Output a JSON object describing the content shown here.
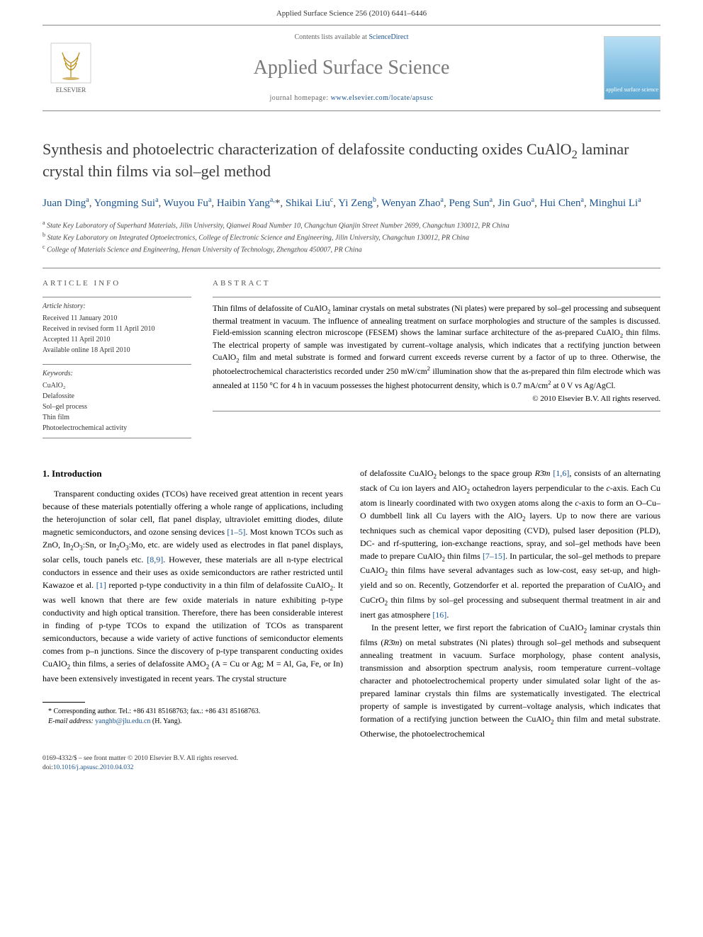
{
  "header": {
    "citation": "Applied Surface Science 256 (2010) 6441–6446"
  },
  "banner": {
    "contents_prefix": "Contents lists available at ",
    "contents_link": "ScienceDirect",
    "journal_title": "Applied Surface Science",
    "homepage_prefix": "journal homepage: ",
    "homepage_url": "www.elsevier.com/locate/apsusc",
    "publisher": "ELSEVIER",
    "cover_text": "applied surface science"
  },
  "article": {
    "title_html": "Synthesis and photoelectric characterization of delafossite conducting oxides CuAlO<sub>2</sub> laminar crystal thin films via sol–gel method",
    "authors_html": "<a>Juan Ding</a><span class=\"sup\">a</span>, <a>Yongming Sui</a><span class=\"sup\">a</span>, <a>Wuyou Fu</a><span class=\"sup\">a</span>, <a>Haibin Yang</a><span class=\"sup\">a,</span>*, <a>Shikai Liu</a><span class=\"sup\">c</span>, <a>Yi Zeng</a><span class=\"sup\">b</span>, <a>Wenyan Zhao</a><span class=\"sup\">a</span>, <a>Peng Sun</a><span class=\"sup\">a</span>, <a>Jin Guo</a><span class=\"sup\">a</span>, <a>Hui Chen</a><span class=\"sup\">a</span>, <a>Minghui Li</a><span class=\"sup\">a</span>",
    "affiliations": [
      {
        "sup": "a",
        "text": "State Key Laboratory of Superhard Materials, Jilin University, Qianwei Road Number 10, Changchun Qianjin Street Number 2699, Changchun 130012, PR China"
      },
      {
        "sup": "b",
        "text": "State Key Laboratory on Integrated Optoelectronics, College of Electronic Science and Engineering, Jilin University, Changchun 130012, PR China"
      },
      {
        "sup": "c",
        "text": "College of Materials Science and Engineering, Henan University of Technology, Zhengzhou 450007, PR China"
      }
    ]
  },
  "info": {
    "heading": "article info",
    "history_label": "Article history:",
    "history": [
      "Received 11 January 2010",
      "Received in revised form 11 April 2010",
      "Accepted 11 April 2010",
      "Available online 18 April 2010"
    ],
    "keywords_label": "Keywords:",
    "keywords": [
      "CuAlO₂",
      "Delafossite",
      "Sol–gel process",
      "Thin film",
      "Photoelectrochemical activity"
    ]
  },
  "abstract": {
    "heading": "abstract",
    "text_html": "Thin films of delafossite of CuAlO<sub>2</sub> laminar crystals on metal substrates (Ni plates) were prepared by sol–gel processing and subsequent thermal treatment in vacuum. The influence of annealing treatment on surface morphologies and structure of the samples is discussed. Field-emission scanning electron microscope (FESEM) shows the laminar surface architecture of the as-prepared CuAlO<sub>2</sub> thin films. The electrical property of sample was investigated by current–voltage analysis, which indicates that a rectifying junction between CuAlO<sub>2</sub> film and metal substrate is formed and forward current exceeds reverse current by a factor of up to three. Otherwise, the photoelectrochemical characteristics recorded under 250 mW/cm<sup>2</sup> illumination show that the as-prepared thin film electrode which was annealed at 1150 °C for 4 h in vacuum possesses the highest photocurrent density, which is 0.7 mA/cm<sup>2</sup> at 0 V vs Ag/AgCl.",
    "copyright": "© 2010 Elsevier B.V. All rights reserved."
  },
  "body": {
    "section_heading": "1. Introduction",
    "para1_html": "Transparent conducting oxides (TCOs) have received great attention in recent years because of these materials potentially offering a whole range of applications, including the heterojunction of solar cell, flat panel display, ultraviolet emitting diodes, dilute magnetic semiconductors, and ozone sensing devices <a>[1–5]</a>. Most known TCOs such as ZnO, In<sub>2</sub>O<sub>3</sub>:Sn, or In<sub>2</sub>O<sub>3</sub>:Mo, etc. are widely used as electrodes in flat panel displays, solar cells, touch panels etc. <a>[8,9]</a>. However, these materials are all n-type electrical conductors in essence and their uses as oxide semiconductors are rather restricted until Kawazoe et al. <a>[1]</a> reported p-type conductivity in a thin film of delafossite CuAlO<sub>2</sub>. It was well known that there are few oxide materials in nature exhibiting p-type conductivity and high optical transition. Therefore, there has been considerable interest in finding of p-type TCOs to expand the utilization of TCOs as transparent semiconductors, because a wide variety of active functions of semiconductor elements comes from p–n junctions. Since the discovery of p-type transparent conducting oxides CuAlO<sub>2</sub> thin films, a series of delafossite AMO<sub>2</sub> (A = Cu or Ag; M = Al, Ga, Fe, or In) have been extensively investigated in recent years. The crystal structure",
    "para1b_html": "of delafossite CuAlO<sub>2</sub> belongs to the space group <i>R</i>3̄<i>m</i> <a>[1,6]</a>, consists of an alternating stack of Cu ion layers and AlO<sub>2</sub> octahedron layers perpendicular to the <i>c</i>-axis. Each Cu atom is linearly coordinated with two oxygen atoms along the <i>c</i>-axis to form an O–Cu–O dumbbell link all Cu layers with the AlO<sub>2</sub> layers. Up to now there are various techniques such as chemical vapor depositing (CVD), pulsed laser deposition (PLD), DC- and rf-sputtering, ion-exchange reactions, spray, and sol–gel methods have been made to prepare CuAlO<sub>2</sub> thin films <a>[7–15]</a>. In particular, the sol–gel methods to prepare CuAlO<sub>2</sub> thin films have several advantages such as low-cost, easy set-up, and high-yield and so on. Recently, Gotzendorfer et al. reported the preparation of CuAlO<sub>2</sub> and CuCrO<sub>2</sub> thin films by sol–gel processing and subsequent thermal treatment in air and inert gas atmosphere <a>[16]</a>.",
    "para2_html": "In the present letter, we first report the fabrication of CuAlO<sub>2</sub> laminar crystals thin films (<i>R</i>3̄<i>m</i>) on metal substrates (Ni plates) through sol–gel methods and subsequent annealing treatment in vacuum. Surface morphology, phase content analysis, transmission and absorption spectrum analysis, room temperature current–voltage character and photoelectrochemical property under simulated solar light of the as-prepared laminar crystals thin films are systematically investigated. The electrical property of sample is investigated by current–voltage analysis, which indicates that formation of a rectifying junction between the CuAlO<sub>2</sub> thin film and metal substrate. Otherwise, the photoelectrochemical"
  },
  "footnote": {
    "corr_html": "* Corresponding author. Tel.: +86 431 85168763; fax.: +86 431 85168763.",
    "email_label": "E-mail address:",
    "email": "yanghb@jlu.edu.cn",
    "email_suffix": "(H. Yang)."
  },
  "footer": {
    "issn_line": "0169-4332/$ – see front matter © 2010 Elsevier B.V. All rights reserved.",
    "doi_prefix": "doi:",
    "doi": "10.1016/j.apsusc.2010.04.032"
  },
  "style": {
    "link_color": "#1a5490",
    "text_color": "#000000",
    "muted_color": "#555555",
    "gray_title": "#7a7a7a",
    "body_fontsize": 12,
    "title_fontsize": 22,
    "journal_fontsize": 28
  }
}
